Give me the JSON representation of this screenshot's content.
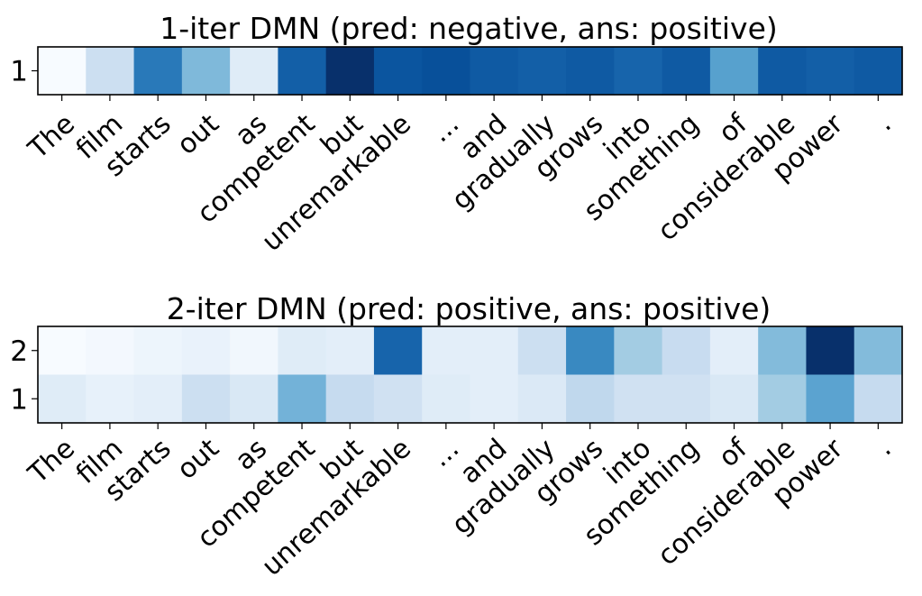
{
  "chart_data": [
    {
      "type": "heatmap",
      "title": "1-iter DMN (pred: negative, ans: positive)",
      "rows": [
        "1"
      ],
      "x": [
        "The",
        "film",
        "starts",
        "out",
        "as",
        "competent",
        "but",
        "unremarkable",
        "...",
        "and",
        "gradually",
        "grows",
        "into",
        "something",
        "of",
        "considerable",
        "power",
        "."
      ],
      "values": [
        [
          0.0,
          0.22,
          0.72,
          0.45,
          0.12,
          0.82,
          1.0,
          0.86,
          0.88,
          0.84,
          0.82,
          0.84,
          0.8,
          0.84,
          0.56,
          0.84,
          0.82,
          0.84
        ]
      ],
      "colormap": "Blues",
      "grid": false
    },
    {
      "type": "heatmap",
      "title": "2-iter DMN (pred: positive, ans: positive)",
      "rows": [
        "2",
        "1"
      ],
      "x": [
        "The",
        "film",
        "starts",
        "out",
        "as",
        "competent",
        "but",
        "unremarkable",
        "...",
        "and",
        "gradually",
        "grows",
        "into",
        "something",
        "of",
        "considerable",
        "power",
        "."
      ],
      "values": [
        [
          0.0,
          0.02,
          0.05,
          0.07,
          0.03,
          0.12,
          0.1,
          0.8,
          0.1,
          0.1,
          0.22,
          0.66,
          0.36,
          0.24,
          0.1,
          0.44,
          1.0,
          0.44
        ],
        [
          0.12,
          0.08,
          0.1,
          0.22,
          0.15,
          0.48,
          0.25,
          0.2,
          0.12,
          0.1,
          0.14,
          0.27,
          0.2,
          0.2,
          0.15,
          0.36,
          0.55,
          0.25
        ]
      ],
      "colormap": "Blues",
      "grid": false
    }
  ]
}
